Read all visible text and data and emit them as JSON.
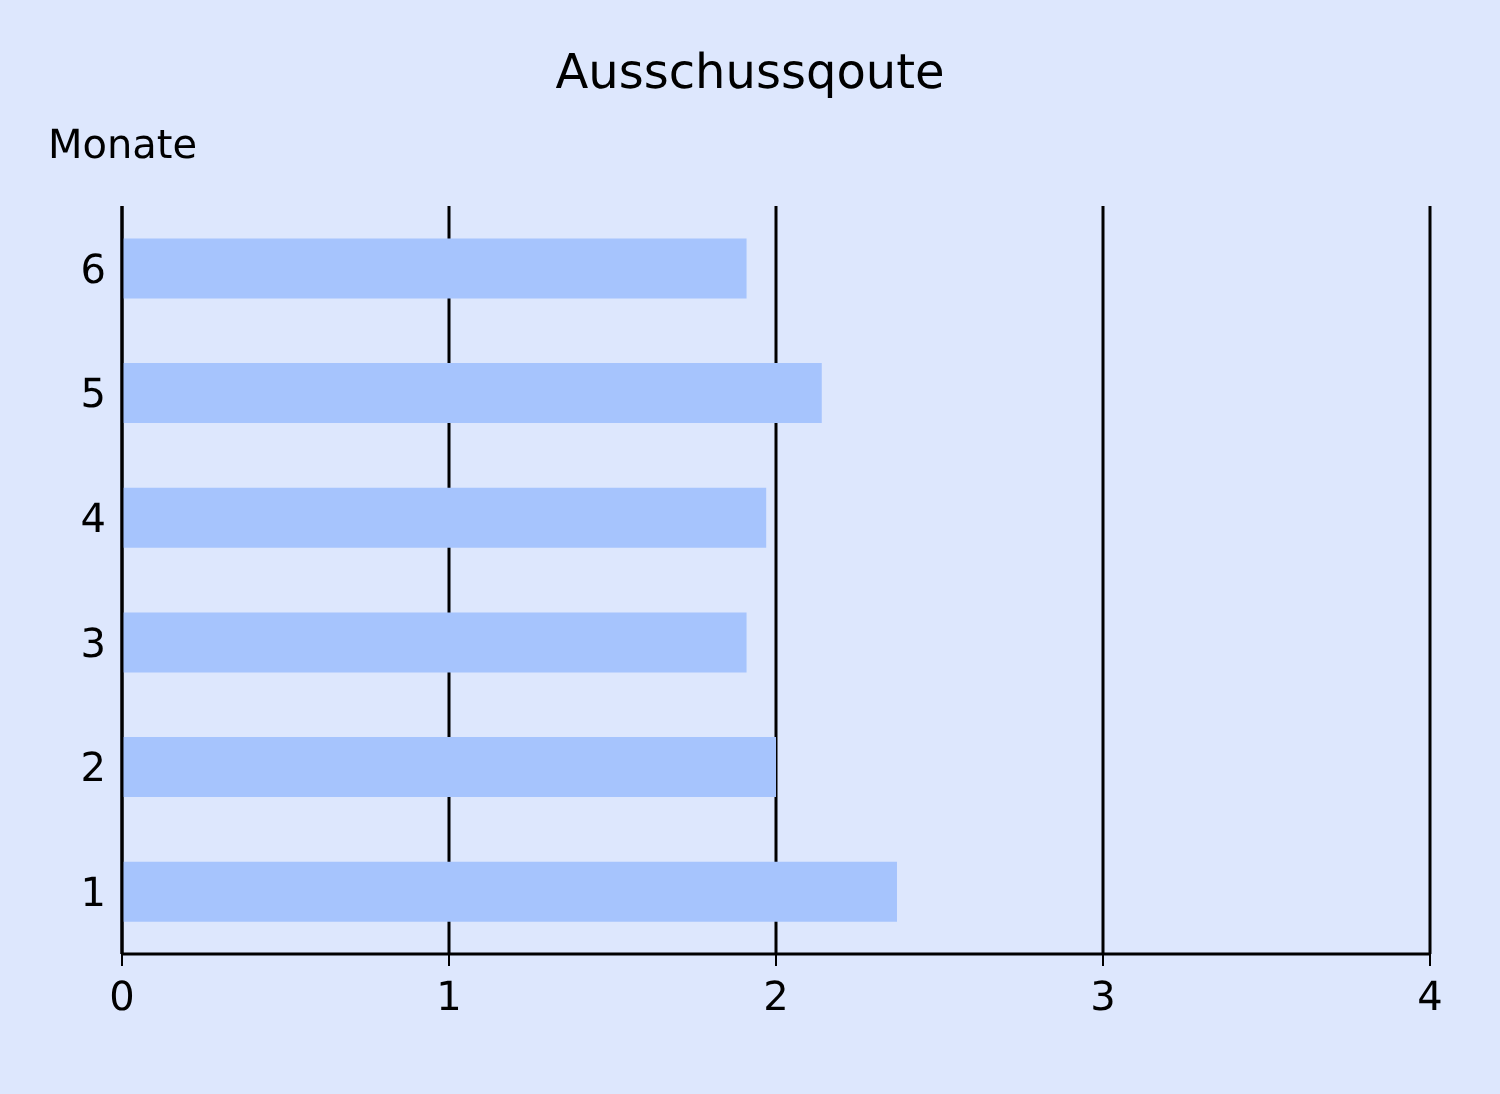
{
  "chart_data": {
    "type": "bar",
    "title": "Ausschussqoute",
    "ylabel": "Monate",
    "orientation": "horizontal",
    "categories": [
      "6",
      "5",
      "4",
      "3",
      "2",
      "1"
    ],
    "values": [
      1.91,
      2.14,
      1.97,
      1.91,
      2.0,
      2.37
    ],
    "color": "#a6c4fd",
    "xlim": [
      0,
      4
    ],
    "xticks": [
      0,
      1,
      2,
      3,
      4
    ],
    "grid": "x"
  }
}
